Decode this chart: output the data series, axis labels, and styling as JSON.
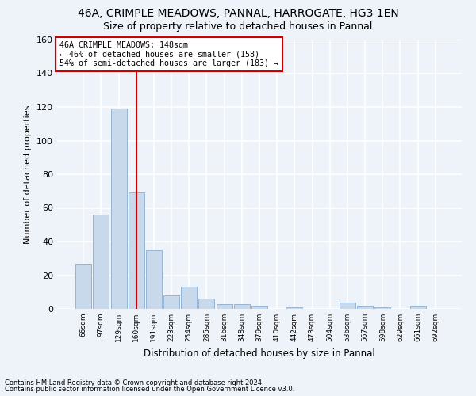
{
  "title1": "46A, CRIMPLE MEADOWS, PANNAL, HARROGATE, HG3 1EN",
  "title2": "Size of property relative to detached houses in Pannal",
  "xlabel": "Distribution of detached houses by size in Pannal",
  "ylabel": "Number of detached properties",
  "categories": [
    "66sqm",
    "97sqm",
    "129sqm",
    "160sqm",
    "191sqm",
    "223sqm",
    "254sqm",
    "285sqm",
    "316sqm",
    "348sqm",
    "379sqm",
    "410sqm",
    "442sqm",
    "473sqm",
    "504sqm",
    "536sqm",
    "567sqm",
    "598sqm",
    "629sqm",
    "661sqm",
    "692sqm"
  ],
  "values": [
    27,
    56,
    119,
    69,
    35,
    8,
    13,
    6,
    3,
    3,
    2,
    0,
    1,
    0,
    0,
    4,
    2,
    1,
    0,
    2,
    0
  ],
  "bar_color": "#c9d9ec",
  "bar_edge_color": "#8aaece",
  "vline_x": 3,
  "vline_color": "#cc0000",
  "annotation_line1": "46A CRIMPLE MEADOWS: 148sqm",
  "annotation_line2": "← 46% of detached houses are smaller (158)",
  "annotation_line3": "54% of semi-detached houses are larger (183) →",
  "annotation_box_color": "#ffffff",
  "annotation_box_edge": "#cc0000",
  "ylim": [
    0,
    160
  ],
  "yticks": [
    0,
    20,
    40,
    60,
    80,
    100,
    120,
    140,
    160
  ],
  "footer1": "Contains HM Land Registry data © Crown copyright and database right 2024.",
  "footer2": "Contains public sector information licensed under the Open Government Licence v3.0.",
  "background_color": "#eef2f9",
  "grid_color": "#ffffff",
  "title_fontsize": 10,
  "subtitle_fontsize": 9
}
